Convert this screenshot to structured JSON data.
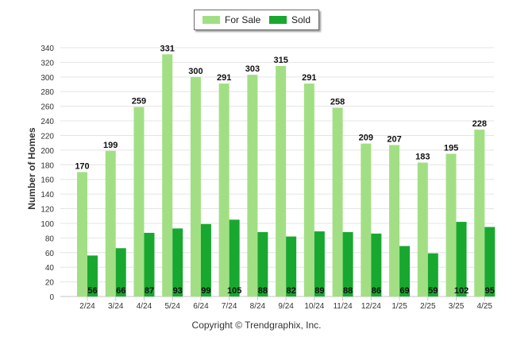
{
  "chart_data": {
    "type": "bar",
    "categories": [
      "2/24",
      "3/24",
      "4/24",
      "5/24",
      "6/24",
      "7/24",
      "8/24",
      "9/24",
      "10/24",
      "11/24",
      "12/24",
      "1/25",
      "2/25",
      "3/25",
      "4/25"
    ],
    "series": [
      {
        "name": "For Sale",
        "color": "#a2df84",
        "values": [
          170,
          199,
          259,
          331,
          300,
          291,
          303,
          315,
          291,
          258,
          209,
          207,
          183,
          195,
          228
        ]
      },
      {
        "name": "Sold",
        "color": "#18a830",
        "values": [
          56,
          66,
          87,
          93,
          99,
          105,
          88,
          82,
          89,
          88,
          86,
          69,
          59,
          102,
          95
        ]
      }
    ],
    "ylabel": "Number of Homes",
    "ylim": [
      0,
      340
    ],
    "yticks": [
      0,
      20,
      40,
      60,
      80,
      100,
      120,
      140,
      160,
      180,
      200,
      220,
      240,
      260,
      280,
      300,
      320,
      340
    ],
    "grid": true,
    "legend_position": "top-center"
  },
  "footer": {
    "copyright": "Copyright © Trendgraphix, Inc."
  }
}
